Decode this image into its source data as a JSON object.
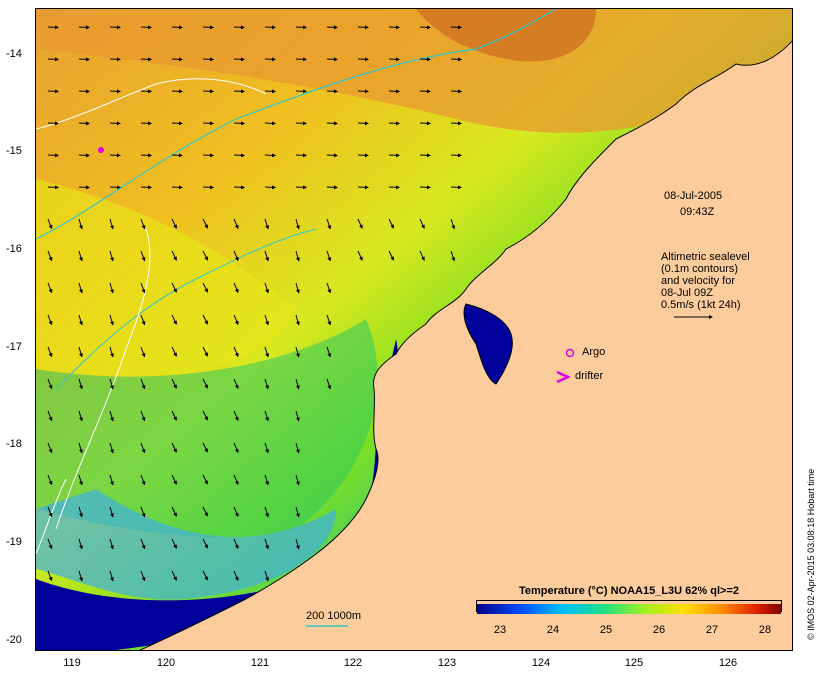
{
  "map": {
    "date": "08-Jul-2005",
    "time": "09:43Z",
    "altimetry_lines": [
      "Altimetric sealevel",
      "(0.1m contours)",
      "and velocity for",
      "08-Jul 09Z",
      "0.5m/s (1kt 24h)"
    ],
    "argo_label": "Argo",
    "drifter_label": "drifter",
    "bathy_label": "200  1000m",
    "colorbar_title": "Temperature (°C) NOAA15_L3U 62% ql>=2",
    "credit": "© IMOS 02-Apr-2015 03:08:18 Hobart time",
    "y_ticks": [
      "-14",
      "-15",
      "-16",
      "-17",
      "-18",
      "-19",
      "-20"
    ],
    "x_ticks": [
      "119",
      "120",
      "121",
      "122",
      "123",
      "124",
      "125",
      "126"
    ],
    "colorbar_ticks": [
      "23",
      "24",
      "25",
      "26",
      "27",
      "28"
    ],
    "colors": {
      "land": "#fccc9c",
      "sst_cold": "#00008b",
      "sst_warm": "#8b0000",
      "argo": "#e000e0",
      "bathy_contour": "#30c8c8",
      "sealevel_contour": "#ffffff"
    }
  }
}
